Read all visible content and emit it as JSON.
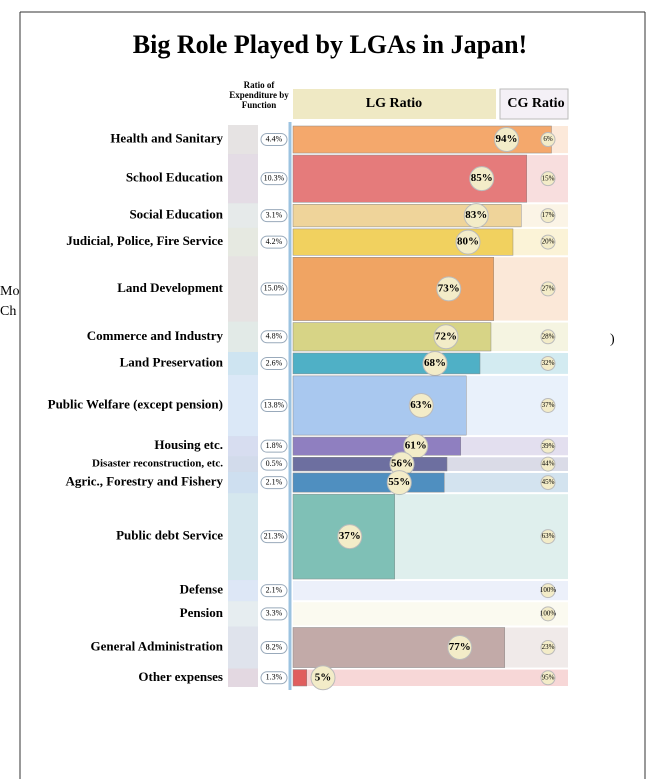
{
  "chart_data": {
    "type": "mekko",
    "title": "Big Role Played by LGAs in Japan!",
    "header_ratio": "Ratio of Expenditure by Function",
    "header_lg": "LG Ratio",
    "header_cg": "CG Ratio",
    "background_texts": [
      "Mo",
      "Ch",
      ")"
    ],
    "categories": [
      "Health and Sanitary",
      "School Education",
      "Social Education",
      "Judicial, Police, Fire Service",
      "Land Development",
      "Commerce and Industry",
      "Land Preservation",
      "Public Welfare (except pension)",
      "Housing etc.",
      "Disaster reconstruction, etc.",
      "Agric., Forestry and Fishery",
      "Public debt Service",
      "Defense",
      "Pension",
      "General Administration",
      "Other expenses"
    ],
    "colors": [
      "#f4a86c",
      "#e57b7b",
      "#efd49a",
      "#f1d15f",
      "#f0a463",
      "#d7d486",
      "#4fb0c6",
      "#a9c8ef",
      "#8f7fc0",
      "#6d6fa0",
      "#4f8fc0",
      "#7fc0b6",
      "#b4c4ea",
      "#f1eac4",
      "#c2aaa8",
      "#e05e5e"
    ],
    "series": [
      {
        "name": "Ratio of Expenditure by Function",
        "values": [
          4.4,
          10.3,
          3.1,
          4.2,
          15.0,
          4.8,
          2.6,
          13.8,
          1.8,
          0.5,
          2.1,
          21.3,
          2.1,
          3.3,
          8.2,
          1.3
        ],
        "value_labels": [
          "4.4%",
          "10.3%",
          "3.1%",
          "4.2%",
          "15.0%",
          "4.8%",
          "2.6%",
          "13.8%",
          "1.8%",
          "0.5%",
          "2.1%",
          "21.3%",
          "2.1%",
          "3.3%",
          "8.2%",
          "1.3%"
        ]
      },
      {
        "name": "LG Ratio",
        "values": [
          94,
          85,
          83,
          80,
          73,
          72,
          68,
          63,
          61,
          56,
          55,
          37,
          0,
          0,
          77,
          5
        ],
        "value_labels": [
          "94%",
          "85%",
          "83%",
          "80%",
          "73%",
          "72%",
          "68%",
          "63%",
          "61%",
          "56%",
          "55%",
          "37%",
          null,
          null,
          "77%",
          "5%"
        ]
      },
      {
        "name": "CG Ratio",
        "values": [
          6,
          15,
          17,
          20,
          27,
          28,
          32,
          37,
          39,
          44,
          45,
          63,
          100,
          100,
          23,
          95
        ],
        "value_labels": [
          "6%",
          "15%",
          "17%",
          "20%",
          "27%",
          "28%",
          "32%",
          "37%",
          "39%",
          "44%",
          "45%",
          "63%",
          "100%",
          "100%",
          "23%",
          "95%"
        ]
      }
    ],
    "xlim": [
      0,
      100
    ]
  }
}
